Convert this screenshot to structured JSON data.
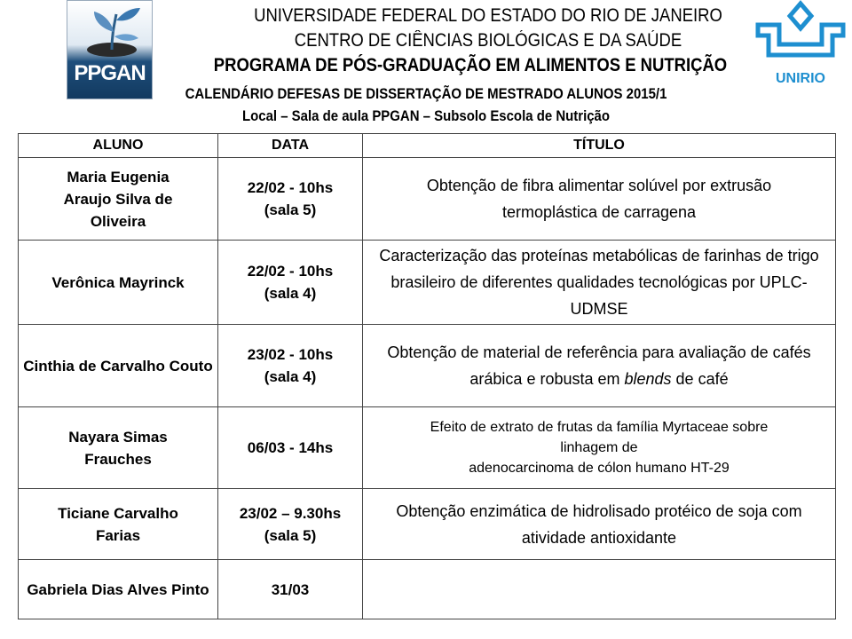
{
  "header": {
    "line1": "UNIVERSIDADE  FEDERAL DO ESTADO DO  RIO DE JANEIRO",
    "line2": "CENTRO DE CIÊNCIAS  BIOLÓGICAS  E DA SAÚDE",
    "line3": "PROGRAMA DE PÓS-GRADUAÇÃO EM ALIMENTOS E NUTRIÇÃO",
    "line4": "CALENDÁRIO  DEFESAS DE DISSERTAÇÃO  DE MESTRADO ALUNOS  2015/1",
    "line5": "Local – Sala de aula PPGAN  – Subsolo Escola de Nutrição"
  },
  "logos": {
    "left": "PPGAN",
    "right": "UNIRIO",
    "right_color": "#1e8fd0",
    "left_color": "#123a60"
  },
  "table": {
    "headers": [
      "ALUNO",
      "DATA",
      "TÍTULO"
    ],
    "rows": [
      {
        "name": "Maria Eugenia Araujo Silva de Oliveira",
        "date": "22/02  - 10hs",
        "room": "(sala 5)",
        "title": "Obtenção de fibra alimentar solúvel por extrusão termoplástica de carragena"
      },
      {
        "name": "Verônica Mayrinck",
        "date": "22/02  - 10hs",
        "room": "(sala 4)",
        "title": "Caracterização das proteínas metabólicas de farinhas de trigo brasileiro de diferentes qualidades tecnológicas por UPLC-UDMSE"
      },
      {
        "name": "Cinthia de Carvalho Couto",
        "date": "23/02  - 10hs",
        "room": "(sala 4)",
        "title_a": "Obtenção de material de referência para avaliação de cafés arábica e robusta em ",
        "title_em": "blends",
        "title_b": " de café"
      },
      {
        "name": "Nayara Simas Frauches",
        "date": "06/03  - 14hs",
        "room": "",
        "title_1": "Efeito de extrato de frutas da família Myrtaceae sobre",
        "title_2": "linhagem  de",
        "title_3": "adenocarcinoma de cólon humano  HT-29"
      },
      {
        "name": "Ticiane Carvalho Farias",
        "date": "23/02 – 9.30hs",
        "room": "(sala 5)",
        "title": "Obtenção enzimática de hidrolisado protéico de soja com atividade antioxidante"
      },
      {
        "name": "Gabriela Dias Alves Pinto",
        "date": "31/03",
        "room": "",
        "title": ""
      }
    ]
  }
}
